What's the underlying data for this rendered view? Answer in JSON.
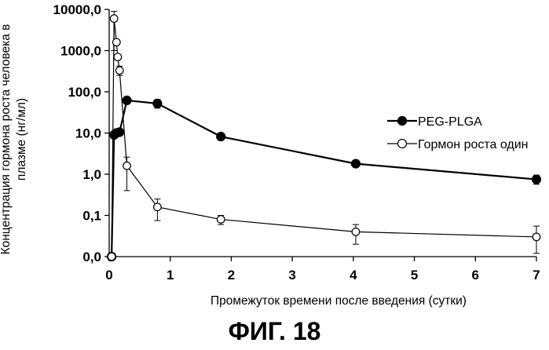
{
  "figure_caption": "ФИГ. 18",
  "chart_data": {
    "type": "line",
    "title": "",
    "xlabel": "Промежуток времени после введения (сутки)",
    "ylabel": "Концентрация гормона роста человека в плазме (нг/мл)",
    "xlim": [
      0,
      7
    ],
    "x_ticks": [
      0,
      1,
      2,
      3,
      4,
      5,
      6,
      7
    ],
    "y_scale": "log",
    "y_tick_values": [
      0.01,
      0.1,
      1,
      10,
      100,
      1000,
      10000
    ],
    "y_tick_labels": [
      "0,0",
      "0,1",
      "1,0",
      "10,0",
      "100,0",
      "1000,0",
      "10000,0"
    ],
    "grid": false,
    "legend_position": "right",
    "series": [
      {
        "name": "PEG-PLGA",
        "marker": "filled-circle",
        "color": "#000000",
        "x": [
          0.04,
          0.08,
          0.12,
          0.17,
          0.29,
          0.79,
          1.83,
          4.04,
          7.0
        ],
        "y": [
          0.01,
          9,
          10,
          10.5,
          62,
          52,
          8.2,
          1.8,
          0.75
        ],
        "err_low": [
          null,
          null,
          null,
          null,
          null,
          40,
          null,
          1.5,
          0.57
        ],
        "err_high": [
          null,
          null,
          null,
          null,
          null,
          65,
          null,
          2.1,
          0.95
        ]
      },
      {
        "name": "Гормон роста один",
        "marker": "open-circle",
        "color": "#000000",
        "x": [
          0.04,
          0.08,
          0.12,
          0.14,
          0.17,
          0.29,
          0.79,
          1.83,
          4.04,
          7.0
        ],
        "y": [
          0.01,
          6000,
          1600,
          700,
          330,
          1.6,
          0.16,
          0.08,
          0.04,
          0.03
        ],
        "err_low": [
          null,
          1000,
          null,
          null,
          250,
          0.4,
          0.075,
          0.06,
          0.02,
          0.012
        ],
        "err_high": [
          null,
          9000,
          null,
          null,
          420,
          2.6,
          0.25,
          0.1,
          0.06,
          0.055
        ]
      }
    ]
  }
}
